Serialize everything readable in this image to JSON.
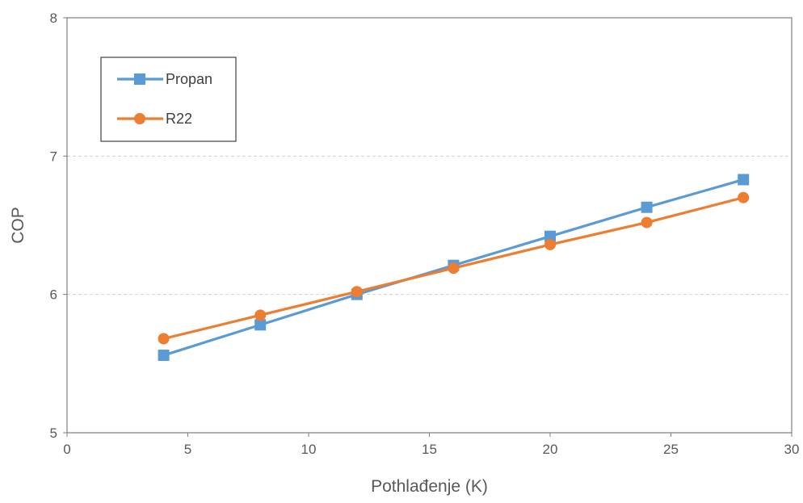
{
  "chart_data": {
    "type": "line",
    "title": "",
    "xlabel": "Pothlađenje (K)",
    "ylabel": "COP",
    "xlim": [
      0,
      30
    ],
    "ylim": [
      5,
      8
    ],
    "x_ticks": [
      "0",
      "5",
      "10",
      "15",
      "20",
      "25",
      "30"
    ],
    "y_ticks": [
      "5",
      "6",
      "7",
      "8"
    ],
    "grid": "horizontal dashed",
    "legend_position": "top-left",
    "x": [
      4,
      8,
      12,
      16,
      20,
      24,
      28
    ],
    "series": [
      {
        "name": "Propan",
        "marker": "square",
        "color": "#5b9bd5",
        "values": [
          5.56,
          5.78,
          6.0,
          6.21,
          6.42,
          6.63,
          6.83
        ]
      },
      {
        "name": "R22",
        "marker": "circle",
        "color": "#ed7d31",
        "values": [
          5.68,
          5.85,
          6.02,
          6.19,
          6.36,
          6.52,
          6.7
        ]
      }
    ]
  }
}
